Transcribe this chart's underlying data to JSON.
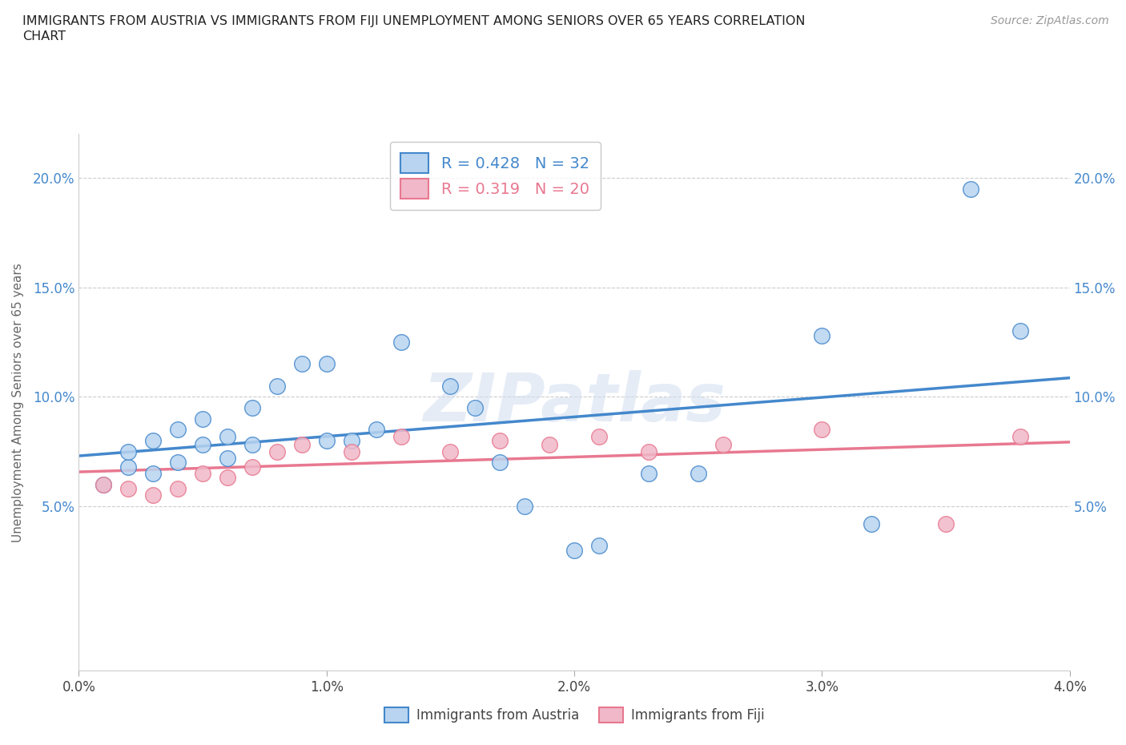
{
  "title": "IMMIGRANTS FROM AUSTRIA VS IMMIGRANTS FROM FIJI UNEMPLOYMENT AMONG SENIORS OVER 65 YEARS CORRELATION\nCHART",
  "source_text": "Source: ZipAtlas.com",
  "ylabel": "Unemployment Among Seniors over 65 years",
  "watermark": "ZIPatlas",
  "legend1_label": "R = 0.428   N = 32",
  "legend2_label": "R = 0.319   N = 20",
  "austria_color": "#b8d4f0",
  "fiji_color": "#f0b8c8",
  "austria_line_color": "#4488cc",
  "fiji_line_color": "#e87890",
  "austria_scatter_x": [
    0.001,
    0.002,
    0.002,
    0.003,
    0.003,
    0.004,
    0.004,
    0.005,
    0.005,
    0.006,
    0.006,
    0.007,
    0.007,
    0.008,
    0.009,
    0.01,
    0.01,
    0.011,
    0.012,
    0.013,
    0.015,
    0.016,
    0.017,
    0.018,
    0.02,
    0.021,
    0.023,
    0.025,
    0.03,
    0.032,
    0.036,
    0.038
  ],
  "austria_scatter_y": [
    0.06,
    0.068,
    0.075,
    0.065,
    0.08,
    0.07,
    0.085,
    0.078,
    0.09,
    0.072,
    0.082,
    0.078,
    0.095,
    0.105,
    0.115,
    0.08,
    0.115,
    0.08,
    0.085,
    0.125,
    0.105,
    0.095,
    0.07,
    0.05,
    0.03,
    0.032,
    0.065,
    0.065,
    0.128,
    0.042,
    0.195,
    0.13
  ],
  "fiji_scatter_x": [
    0.001,
    0.002,
    0.003,
    0.004,
    0.005,
    0.006,
    0.007,
    0.008,
    0.009,
    0.011,
    0.013,
    0.015,
    0.017,
    0.019,
    0.021,
    0.023,
    0.026,
    0.03,
    0.035,
    0.038
  ],
  "fiji_scatter_y": [
    0.06,
    0.058,
    0.055,
    0.058,
    0.065,
    0.063,
    0.068,
    0.075,
    0.078,
    0.075,
    0.082,
    0.075,
    0.08,
    0.078,
    0.082,
    0.075,
    0.078,
    0.085,
    0.042,
    0.082
  ],
  "xmin": 0.0,
  "xmax": 0.04,
  "ymin": -0.025,
  "ymax": 0.22,
  "xticks": [
    0.0,
    0.01,
    0.02,
    0.03,
    0.04
  ],
  "yticks": [
    0.05,
    0.1,
    0.15,
    0.2
  ],
  "ytick_labels": [
    "5.0%",
    "10.0%",
    "15.0%",
    "20.0%"
  ],
  "xtick_labels": [
    "0.0%",
    "1.0%",
    "2.0%",
    "3.0%",
    "4.0%"
  ],
  "background_color": "#ffffff",
  "grid_color": "#cccccc"
}
